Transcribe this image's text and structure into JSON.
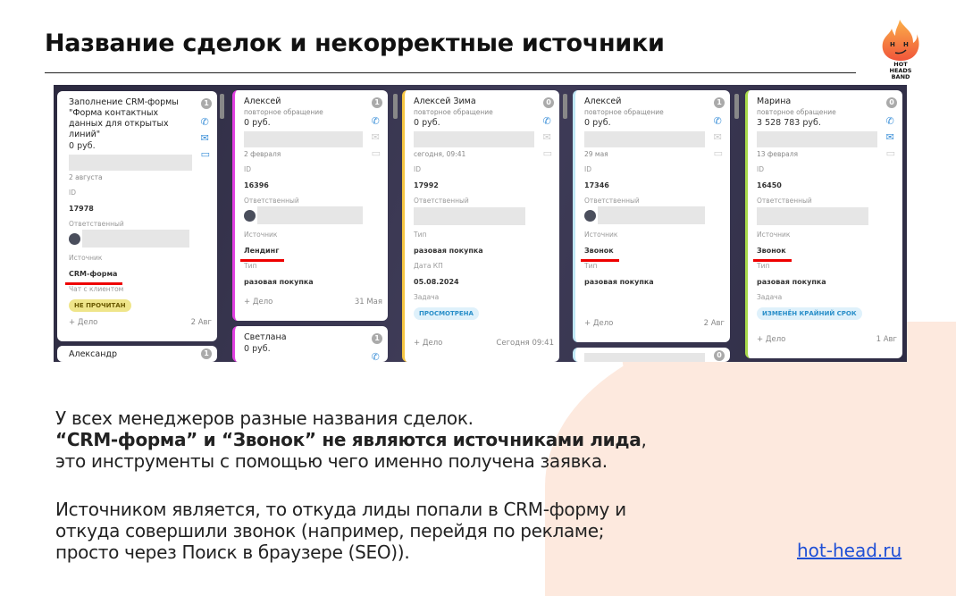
{
  "slide": {
    "title": "Название сделок и некорректные источники",
    "logo_text": "HOT HEADS BAND",
    "brand_color": "#f06b3a",
    "paragraph1": {
      "line1": "У всех менеджеров разные названия сделок.",
      "line2_bold": "“CRM-форма” и “Звонок” не являются источниками лида",
      "line2_tail": ",",
      "line3": "это инструменты с помощью чего именно получена заявка."
    },
    "paragraph2": {
      "line1": "Источником является, то откуда лиды попали в CRM-форму и",
      "line2": "откуда совершили звонок (например, перейдя по рекламе;",
      "line3": "просто через Поиск в браузере (SEO))."
    },
    "link": "hot-head.ru",
    "link_color": "#1f4fd6"
  },
  "crm": {
    "add_task_label": "+ Дело",
    "cards": [
      {
        "title": "Заполнение CRM-формы \"Форма контактных данных для открытых линий\"",
        "subtitle": "",
        "amount": "0 руб.",
        "date": "2 августа",
        "counter": "1",
        "border": "#ffffff",
        "fields": [
          {
            "label": "ID",
            "value": "17978"
          },
          {
            "label": "Ответственный",
            "value": "",
            "avatar": true
          },
          {
            "label": "Источник",
            "value": "CRM-форма",
            "underline": true
          },
          {
            "label": "Чат с клиентом",
            "badge": "НЕ ПРОЧИТАН",
            "badge_bg": "#efe58a",
            "badge_fg": "#6b5a00"
          }
        ],
        "footer_date": "2 Авг"
      },
      {
        "title": "Александр",
        "subtitle": "",
        "amount": "",
        "date": "",
        "counter": "1",
        "border": "#ffffff",
        "fields": [],
        "footer_date": ""
      },
      {
        "title": "Алексей",
        "subtitle": "повторное обращение",
        "amount": "0 руб.",
        "date": "2 февраля",
        "counter": "1",
        "border": "#e040e0",
        "fields": [
          {
            "label": "ID",
            "value": "16396"
          },
          {
            "label": "Ответственный",
            "value": "",
            "avatar": true
          },
          {
            "label": "Источник",
            "value": "Лендинг",
            "underline": true
          },
          {
            "label": "Тип",
            "value": "разовая покупка"
          }
        ],
        "footer_date": "31 Мая"
      },
      {
        "title": "Светлана",
        "subtitle": "",
        "amount": "0 руб.",
        "date": "",
        "counter": "1",
        "border": "#e040e0",
        "fields": [],
        "footer_date": ""
      },
      {
        "title": "Алексей Зима",
        "subtitle": "повторное обращение",
        "amount": "0 руб.",
        "date": "сегодня, 09:41",
        "counter": "0",
        "border": "#f5c542",
        "fields": [
          {
            "label": "ID",
            "value": "17992"
          },
          {
            "label": "Ответственный",
            "value": "",
            "blank": true
          },
          {
            "label": "Тип",
            "value": "разовая покупка"
          },
          {
            "label": "Дата КП",
            "value": "05.08.2024"
          },
          {
            "label": "Задача",
            "badge": "ПРОСМОТРЕНА",
            "badge_bg": "#dff1fb",
            "badge_fg": "#2a8fc9"
          }
        ],
        "footer_date": "Сегодня 09:41"
      },
      {
        "title": "Алексей",
        "subtitle": "повторное обращение",
        "amount": "0 руб.",
        "date": "29 мая",
        "counter": "1",
        "border": "#bfe7f5",
        "fields": [
          {
            "label": "ID",
            "value": "17346"
          },
          {
            "label": "Ответственный",
            "value": "",
            "avatar": true
          },
          {
            "label": "Источник",
            "value": "Звонок",
            "underline": true
          },
          {
            "label": "Тип",
            "value": "разовая покупка"
          }
        ],
        "footer_date": "2 Авг"
      },
      {
        "title": "",
        "subtitle": "",
        "amount": "",
        "date": "",
        "counter": "0",
        "border": "#bfe7f5",
        "fields": [],
        "footer_date": ""
      },
      {
        "title": "Марина",
        "subtitle": "повторное обращение",
        "amount": "3 528 783 руб.",
        "date": "13 февраля",
        "counter": "0",
        "border": "#a8d94a",
        "fields": [
          {
            "label": "ID",
            "value": "16450"
          },
          {
            "label": "Ответственный",
            "value": "",
            "blank": true
          },
          {
            "label": "Источник",
            "value": "Звонок",
            "underline": true
          },
          {
            "label": "Тип",
            "value": "разовая покупка"
          },
          {
            "label": "Задача",
            "badge": "ИЗМЕНЁН КРАЙНИЙ СРОК",
            "badge_bg": "#dff1fb",
            "badge_fg": "#2a8fc9"
          }
        ],
        "footer_date": "1 Авг"
      }
    ]
  }
}
